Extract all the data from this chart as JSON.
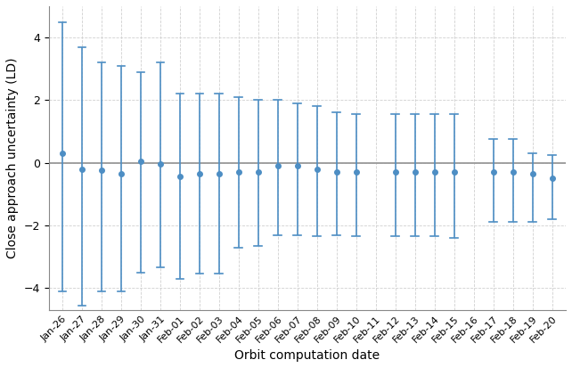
{
  "dates": [
    "Jan-26",
    "Jan-27",
    "Jan-28",
    "Jan-29",
    "Jan-30",
    "Jan-31",
    "Feb-01",
    "Feb-02",
    "Feb-03",
    "Feb-04",
    "Feb-05",
    "Feb-06",
    "Feb-07",
    "Feb-08",
    "Feb-09",
    "Feb-10",
    "Feb-11",
    "Feb-12",
    "Feb-13",
    "Feb-14",
    "Feb-15",
    "Feb-16",
    "Feb-17",
    "Feb-18",
    "Feb-19",
    "Feb-20"
  ],
  "centers": [
    0.3,
    -0.2,
    -0.25,
    -0.35,
    0.05,
    -0.05,
    -0.45,
    -0.35,
    -0.35,
    -0.3,
    -0.3,
    -0.1,
    -0.1,
    -0.2,
    -0.3,
    -0.3,
    null,
    -0.3,
    -0.3,
    -0.3,
    -0.3,
    null,
    -0.3,
    -0.3,
    -0.35,
    -0.5
  ],
  "upper": [
    4.5,
    3.7,
    3.2,
    3.1,
    2.9,
    3.2,
    2.2,
    2.2,
    2.2,
    2.1,
    2.0,
    2.0,
    1.9,
    1.8,
    1.6,
    1.55,
    null,
    1.55,
    1.55,
    1.55,
    1.55,
    null,
    0.75,
    0.75,
    0.3,
    0.25
  ],
  "lower": [
    -4.1,
    -4.55,
    -4.1,
    -4.1,
    -3.5,
    -3.35,
    -3.7,
    -3.55,
    -3.55,
    -2.7,
    -2.65,
    -2.3,
    -2.3,
    -2.35,
    -2.3,
    -2.35,
    null,
    -2.35,
    -2.35,
    -2.35,
    -2.4,
    null,
    -1.9,
    -1.9,
    -1.9,
    -1.8
  ],
  "ylabel": "Close approach uncertainty (LD)",
  "xlabel": "Orbit computation date",
  "ylim": [
    -4.7,
    5.0
  ],
  "line_color": "#4d8ec4",
  "hline_color": "#999999",
  "grid_color": "#d0d0d0",
  "bg_color": "#ffffff",
  "figsize": [
    6.42,
    4.13
  ],
  "dpi": 100
}
